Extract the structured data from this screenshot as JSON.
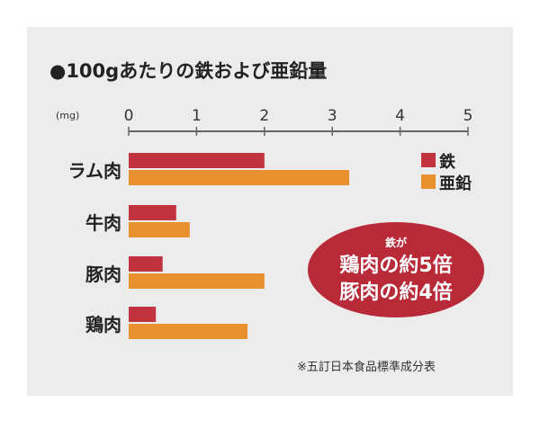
{
  "chart_data": {
    "type": "bar",
    "orientation": "horizontal",
    "title": "●100gあたりの鉄および亜鉛量",
    "unit_label": "(mg)",
    "categories": [
      "ラム肉",
      "牛肉",
      "豚肉",
      "鶏肉"
    ],
    "xlim": [
      0,
      5
    ],
    "ticks": [
      "0",
      "1",
      "2",
      "3",
      "4",
      "5"
    ],
    "series": [
      {
        "name": "鉄",
        "color": "#c0333f",
        "values": [
          2.0,
          0.7,
          0.5,
          0.4
        ]
      },
      {
        "name": "亜鉛",
        "color": "#e8902e",
        "values": [
          3.25,
          0.9,
          2.0,
          1.75
        ]
      }
    ],
    "legend_position": "top-right",
    "grid": false,
    "callout": {
      "line1": "鉄が",
      "line2": "鶏肉の約5倍",
      "line3": "豚肉の約4倍",
      "color": "#b82a38"
    },
    "footnote": "※五訂日本食品標準成分表"
  }
}
